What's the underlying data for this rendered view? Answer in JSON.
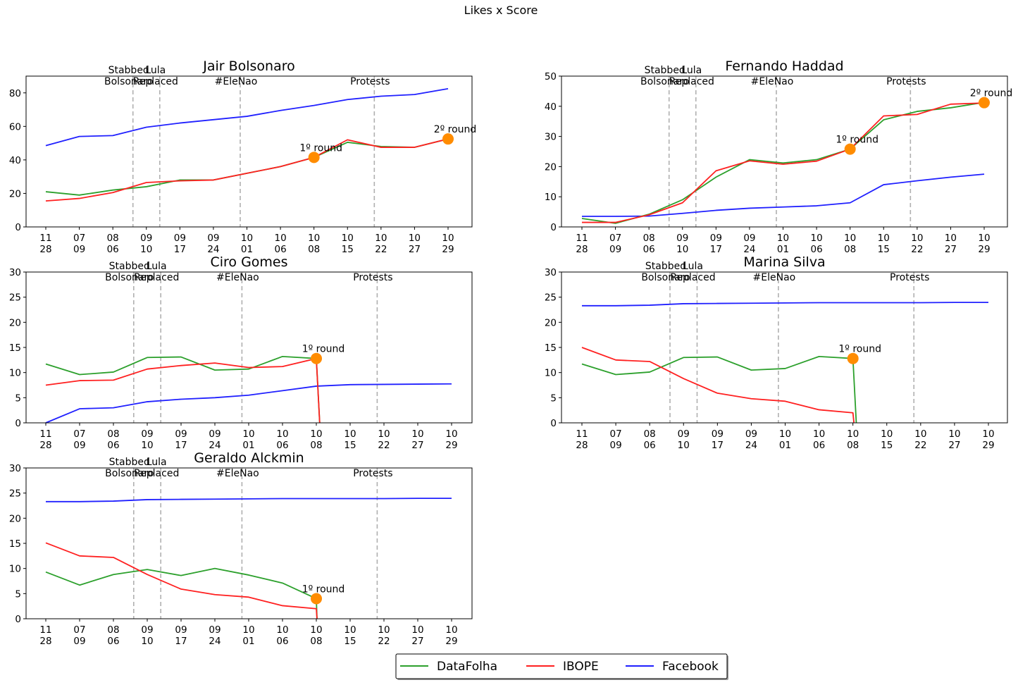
{
  "figure": {
    "title": "Likes x Score"
  },
  "legend": {
    "items": [
      {
        "label": "DataFolha",
        "color": "#2ca02c"
      },
      {
        "label": "IBOPE",
        "color": "#ff2020"
      },
      {
        "label": "Facebook",
        "color": "#2020ff"
      }
    ]
  },
  "events": [
    {
      "label_line1": "Stabbed",
      "label_line2": "Bolsonaro",
      "x": 2.6
    },
    {
      "label_line1": "Lula",
      "label_line2": "Replaced",
      "x": 3.4
    },
    {
      "label_line1": "",
      "label_line2": "#EleNao",
      "x": 5.8
    },
    {
      "label_line1": "",
      "label_line2": "Protests",
      "x": 9.8
    }
  ],
  "chart_data": [
    {
      "type": "line",
      "title": "Jair Bolsonaro",
      "categories": [
        "11\n28",
        "07\n09",
        "08\n06",
        "09\n10",
        "09\n17",
        "09\n24",
        "10\n01",
        "10\n06",
        "10\n08",
        "10\n15",
        "10\n22",
        "10\n27",
        "10\n29"
      ],
      "ylim": [
        0,
        90
      ],
      "yticks": [
        0,
        20,
        40,
        60,
        80
      ],
      "series": [
        {
          "name": "DataFolha",
          "color": "#2ca02c",
          "points": [
            [
              0,
              21
            ],
            [
              1,
              19
            ],
            [
              2,
              22
            ],
            [
              3,
              24
            ],
            [
              4,
              28
            ],
            [
              5,
              28
            ],
            [
              6,
              32
            ],
            [
              7,
              36
            ],
            [
              8,
              41.5
            ],
            [
              9,
              50.5
            ],
            [
              10,
              48
            ],
            [
              11,
              47.5
            ],
            [
              12,
              52.5
            ]
          ]
        },
        {
          "name": "IBOPE",
          "color": "#ff2020",
          "points": [
            [
              0,
              15.5
            ],
            [
              1,
              17
            ],
            [
              2,
              20.5
            ],
            [
              3,
              26.5
            ],
            [
              4,
              27.5
            ],
            [
              5,
              28
            ],
            [
              6,
              32
            ],
            [
              7,
              36
            ],
            [
              8,
              41.5
            ],
            [
              9,
              52
            ],
            [
              10,
              47.5
            ],
            [
              11,
              47.5
            ],
            [
              12,
              52.5
            ]
          ]
        },
        {
          "name": "Facebook",
          "color": "#2020ff",
          "points": [
            [
              0,
              48.5
            ],
            [
              1,
              54
            ],
            [
              2,
              54.5
            ],
            [
              3,
              59.5
            ],
            [
              4,
              62
            ],
            [
              5,
              64
            ],
            [
              6,
              66
            ],
            [
              7,
              69.5
            ],
            [
              8,
              72.5
            ],
            [
              9,
              76
            ],
            [
              10,
              78
            ],
            [
              11,
              79
            ],
            [
              12,
              82.5
            ]
          ]
        }
      ],
      "markers": [
        {
          "x": 8,
          "y": 41.5,
          "label": "1º round"
        },
        {
          "x": 12,
          "y": 52.5,
          "label": "2º round"
        }
      ]
    },
    {
      "type": "line",
      "title": "Fernando Haddad",
      "categories": [
        "11\n28",
        "07\n09",
        "08\n06",
        "09\n10",
        "09\n17",
        "09\n24",
        "10\n01",
        "10\n06",
        "10\n08",
        "10\n15",
        "10\n22",
        "10\n27",
        "10\n29"
      ],
      "ylim": [
        0,
        50
      ],
      "yticks": [
        0,
        10,
        20,
        30,
        40,
        50
      ],
      "series": [
        {
          "name": "DataFolha",
          "color": "#2ca02c",
          "points": [
            [
              0,
              2.8
            ],
            [
              1,
              1.2
            ],
            [
              2,
              4.2
            ],
            [
              3,
              9
            ],
            [
              4,
              16.5
            ],
            [
              5,
              22.3
            ],
            [
              6,
              21.2
            ],
            [
              7,
              22.3
            ],
            [
              8,
              25.8
            ],
            [
              9,
              35.5
            ],
            [
              10,
              38.3
            ],
            [
              11,
              39.5
            ],
            [
              12,
              41.3
            ]
          ]
        },
        {
          "name": "IBOPE",
          "color": "#ff2020",
          "points": [
            [
              0,
              1.5
            ],
            [
              1,
              1.5
            ],
            [
              2,
              4
            ],
            [
              3,
              8
            ],
            [
              4,
              18.6
            ],
            [
              5,
              21.9
            ],
            [
              6,
              20.8
            ],
            [
              7,
              21.8
            ],
            [
              8,
              25.8
            ],
            [
              9,
              36.8
            ],
            [
              10,
              37.3
            ],
            [
              11,
              40.7
            ],
            [
              12,
              41.1
            ]
          ]
        },
        {
          "name": "Facebook",
          "color": "#2020ff",
          "points": [
            [
              0,
              3.5
            ],
            [
              1,
              3.5
            ],
            [
              2,
              3.6
            ],
            [
              3,
              4.5
            ],
            [
              4,
              5.5
            ],
            [
              5,
              6.2
            ],
            [
              6,
              6.6
            ],
            [
              7,
              7
            ],
            [
              8,
              8
            ],
            [
              9,
              14
            ],
            [
              10,
              15.3
            ],
            [
              11,
              16.5
            ],
            [
              12,
              17.5
            ]
          ]
        }
      ],
      "markers": [
        {
          "x": 8,
          "y": 25.8,
          "label": "1º round"
        },
        {
          "x": 12,
          "y": 41.2,
          "label": "2º round"
        }
      ]
    },
    {
      "type": "line",
      "title": "Ciro Gomes",
      "categories": [
        "11\n28",
        "07\n09",
        "08\n06",
        "09\n10",
        "09\n17",
        "09\n24",
        "10\n01",
        "10\n06",
        "10\n08",
        "10\n15",
        "10\n22",
        "10\n27",
        "10\n29"
      ],
      "ylim": [
        0,
        30
      ],
      "yticks": [
        0,
        5,
        10,
        15,
        20,
        25,
        30
      ],
      "series": [
        {
          "name": "DataFolha",
          "color": "#2ca02c",
          "points": [
            [
              0,
              11.7
            ],
            [
              1,
              9.6
            ],
            [
              2,
              10.1
            ],
            [
              3,
              13
            ],
            [
              4,
              13.1
            ],
            [
              5,
              10.5
            ],
            [
              6,
              10.7
            ],
            [
              7,
              13.2
            ],
            [
              8,
              12.8
            ],
            [
              8.1,
              0
            ]
          ]
        },
        {
          "name": "IBOPE",
          "color": "#ff2020",
          "points": [
            [
              0,
              7.5
            ],
            [
              1,
              8.4
            ],
            [
              2,
              8.5
            ],
            [
              3,
              10.7
            ],
            [
              4,
              11.4
            ],
            [
              5,
              11.9
            ],
            [
              6,
              11
            ],
            [
              7,
              11.2
            ],
            [
              8,
              12.8
            ],
            [
              8.1,
              0
            ]
          ]
        },
        {
          "name": "Facebook",
          "color": "#2020ff",
          "points": [
            [
              0,
              0
            ],
            [
              1,
              2.8
            ],
            [
              2,
              3
            ],
            [
              3,
              4.2
            ],
            [
              4,
              4.7
            ],
            [
              5,
              5
            ],
            [
              6,
              5.5
            ],
            [
              7,
              6.4
            ],
            [
              8,
              7.3
            ],
            [
              9,
              7.6
            ],
            [
              10,
              7.65
            ],
            [
              11,
              7.7
            ],
            [
              12,
              7.75
            ]
          ]
        }
      ],
      "markers": [
        {
          "x": 8,
          "y": 12.8,
          "label": "1º round"
        }
      ]
    },
    {
      "type": "line",
      "title": "Marina Silva",
      "categories": [
        "11\n28",
        "07\n09",
        "08\n06",
        "09\n10",
        "09\n17",
        "09\n24",
        "10\n01",
        "10\n06",
        "10\n08",
        "10\n15",
        "10\n22",
        "10\n27",
        "10\n29"
      ],
      "ylim": [
        0,
        30
      ],
      "yticks": [
        0,
        5,
        10,
        15,
        20,
        25,
        30
      ],
      "series": [
        {
          "name": "DataFolha",
          "color": "#2ca02c",
          "points": [
            [
              0,
              11.7
            ],
            [
              1,
              9.6
            ],
            [
              2,
              10.1
            ],
            [
              3,
              13
            ],
            [
              4,
              13.1
            ],
            [
              5,
              10.5
            ],
            [
              6,
              10.8
            ],
            [
              7,
              13.2
            ],
            [
              8,
              12.8
            ],
            [
              8.1,
              0
            ]
          ]
        },
        {
          "name": "IBOPE",
          "color": "#ff2020",
          "points": [
            [
              0,
              15
            ],
            [
              1,
              12.5
            ],
            [
              2,
              12.2
            ],
            [
              3,
              8.8
            ],
            [
              4,
              5.9
            ],
            [
              5,
              4.8
            ],
            [
              6,
              4.3
            ],
            [
              7,
              2.6
            ],
            [
              8,
              2
            ],
            [
              8.03,
              0
            ]
          ]
        },
        {
          "name": "Facebook",
          "color": "#2020ff",
          "points": [
            [
              0,
              23.3
            ],
            [
              1,
              23.3
            ],
            [
              2,
              23.4
            ],
            [
              3,
              23.7
            ],
            [
              4,
              23.75
            ],
            [
              5,
              23.8
            ],
            [
              6,
              23.85
            ],
            [
              7,
              23.9
            ],
            [
              8,
              23.9
            ],
            [
              9,
              23.9
            ],
            [
              10,
              23.9
            ],
            [
              11,
              23.95
            ],
            [
              12,
              23.95
            ]
          ]
        }
      ],
      "markers": [
        {
          "x": 8,
          "y": 12.8,
          "label": "1º round"
        }
      ]
    },
    {
      "type": "line",
      "title": "Geraldo Alckmin",
      "categories": [
        "11\n28",
        "07\n09",
        "08\n06",
        "09\n10",
        "09\n17",
        "09\n24",
        "10\n01",
        "10\n06",
        "10\n08",
        "10\n15",
        "10\n22",
        "10\n27",
        "10\n29"
      ],
      "ylim": [
        0,
        30
      ],
      "yticks": [
        0,
        5,
        10,
        15,
        20,
        25,
        30
      ],
      "series": [
        {
          "name": "DataFolha",
          "color": "#2ca02c",
          "points": [
            [
              0,
              9.3
            ],
            [
              1,
              6.7
            ],
            [
              2,
              8.8
            ],
            [
              3,
              9.8
            ],
            [
              4,
              8.6
            ],
            [
              5,
              10
            ],
            [
              6,
              8.7
            ],
            [
              7,
              7.1
            ],
            [
              8,
              4
            ],
            [
              8.02,
              0
            ]
          ]
        },
        {
          "name": "IBOPE",
          "color": "#ff2020",
          "points": [
            [
              0,
              15.1
            ],
            [
              1,
              12.5
            ],
            [
              2,
              12.2
            ],
            [
              3,
              8.8
            ],
            [
              4,
              5.9
            ],
            [
              5,
              4.8
            ],
            [
              6,
              4.3
            ],
            [
              7,
              2.6
            ],
            [
              8,
              2
            ],
            [
              8.02,
              0
            ]
          ]
        },
        {
          "name": "Facebook",
          "color": "#2020ff",
          "points": [
            [
              0,
              23.3
            ],
            [
              1,
              23.3
            ],
            [
              2,
              23.4
            ],
            [
              3,
              23.7
            ],
            [
              4,
              23.75
            ],
            [
              5,
              23.8
            ],
            [
              6,
              23.85
            ],
            [
              7,
              23.9
            ],
            [
              8,
              23.9
            ],
            [
              9,
              23.9
            ],
            [
              10,
              23.9
            ],
            [
              11,
              23.95
            ],
            [
              12,
              23.95
            ]
          ]
        }
      ],
      "markers": [
        {
          "x": 8,
          "y": 4,
          "label": "1º round"
        }
      ]
    }
  ]
}
